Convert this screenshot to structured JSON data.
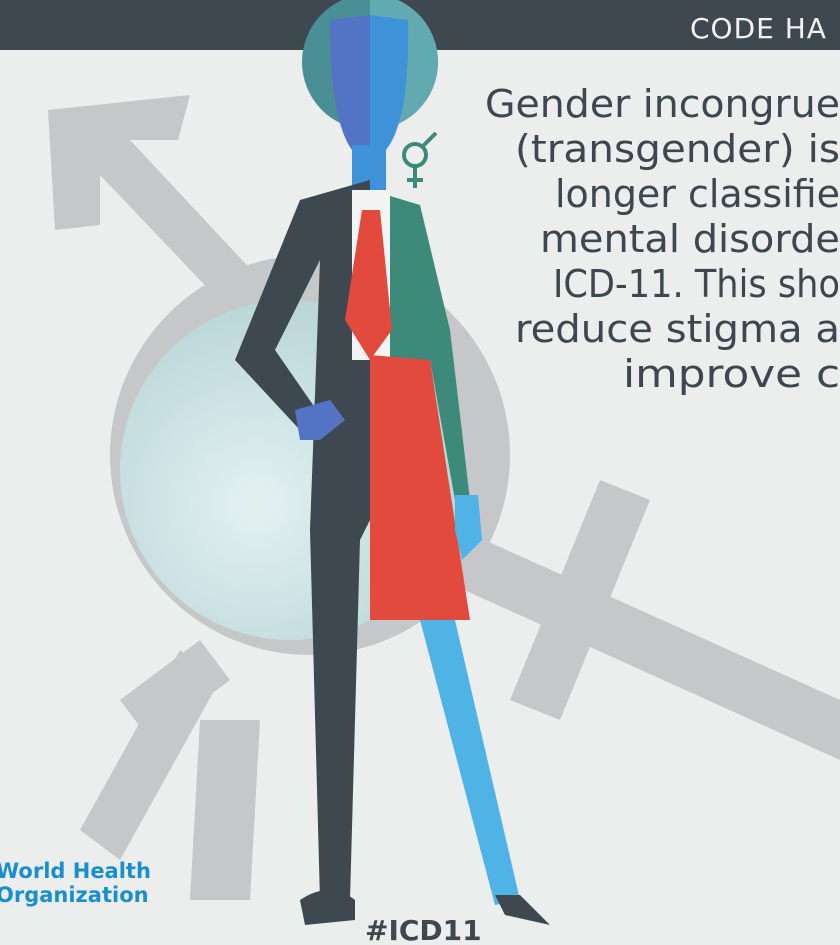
{
  "header": {
    "title": "CODE HA"
  },
  "body": {
    "lines": [
      "Gender incongrue",
      "(transgender) is",
      "longer classifie",
      "mental disorde",
      "ICD-11. This sho",
      "reduce stigma a",
      "improve c"
    ]
  },
  "footer": {
    "org": [
      "World Health",
      "Organization"
    ],
    "hashtag": "#ICD11"
  }
}
